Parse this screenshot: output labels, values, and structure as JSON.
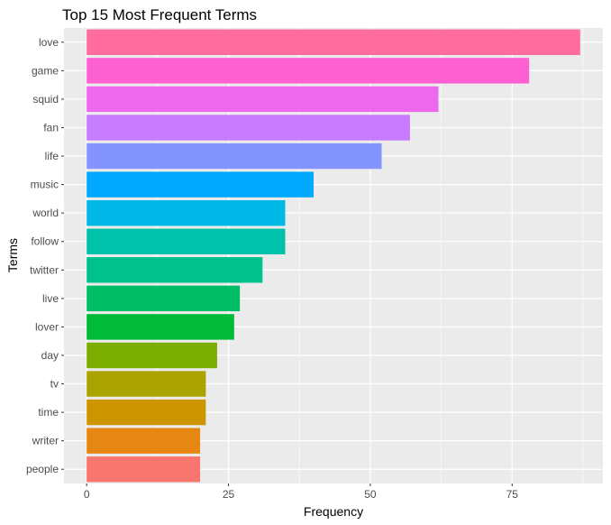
{
  "chart_data": {
    "type": "bar",
    "orientation": "horizontal",
    "title": "Top 15 Most Frequent Terms",
    "xlabel": "Frequency",
    "ylabel": "Terms",
    "categories": [
      "love",
      "game",
      "squid",
      "fan",
      "life",
      "music",
      "world",
      "follow",
      "twitter",
      "live",
      "lover",
      "day",
      "tv",
      "time",
      "writer",
      "people"
    ],
    "values": [
      87,
      78,
      62,
      57,
      52,
      40,
      35,
      35,
      31,
      27,
      26,
      23,
      21,
      21,
      20,
      20
    ],
    "colors": [
      "#FF6C9D",
      "#FD61D1",
      "#ED68ED",
      "#C77CFF",
      "#8494FF",
      "#00A9FF",
      "#00B8E7",
      "#00C1AA",
      "#00C08B",
      "#00BE67",
      "#00BA38",
      "#7CAE00",
      "#ABA300",
      "#CD9600",
      "#E68613",
      "#F8766D"
    ],
    "xlim": [
      -4,
      91
    ],
    "xticks": [
      0,
      25,
      50,
      75
    ],
    "xtick_labels": [
      "0",
      "25",
      "50",
      "75"
    ],
    "grid": true,
    "legend": "none"
  }
}
